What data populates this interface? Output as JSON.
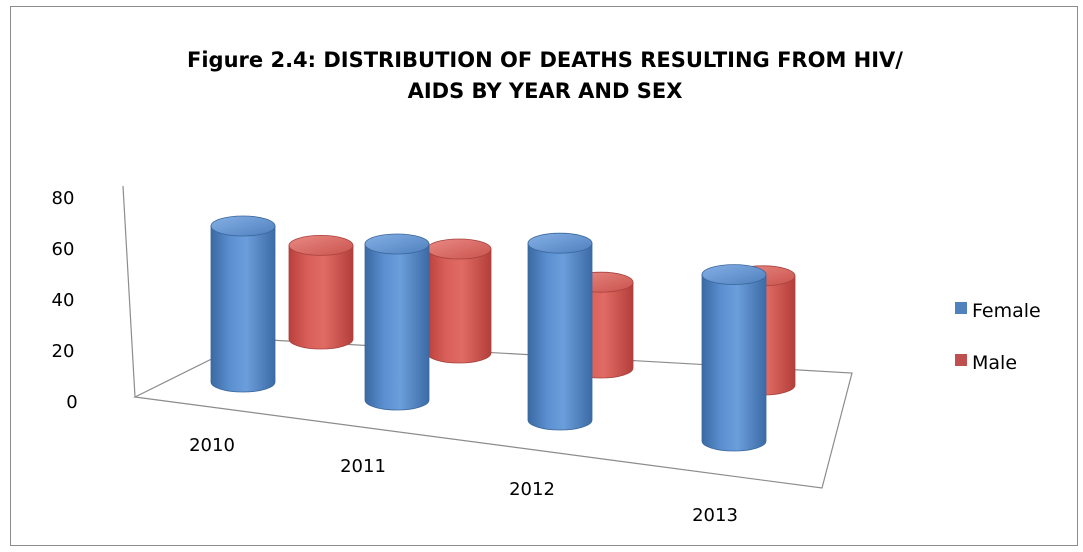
{
  "chart_data": {
    "type": "bar",
    "title_lines": [
      "Figure 2.4: DISTRIBUTION OF DEATHS RESULTING FROM HIV/",
      "AIDS BY YEAR AND SEX"
    ],
    "categories": [
      "2010",
      "2011",
      "2012",
      "2013"
    ],
    "series": [
      {
        "name": "Female",
        "values": [
          60,
          60,
          68,
          64
        ],
        "color": "#4f81bd"
      },
      {
        "name": "Male",
        "values": [
          36,
          40,
          33,
          42
        ],
        "color": "#c0504d"
      }
    ],
    "yticks": [
      "0",
      "20",
      "40",
      "60",
      "80"
    ],
    "ylim": [
      0,
      80
    ],
    "legend_position": "right",
    "style": "3d-cylinder"
  }
}
